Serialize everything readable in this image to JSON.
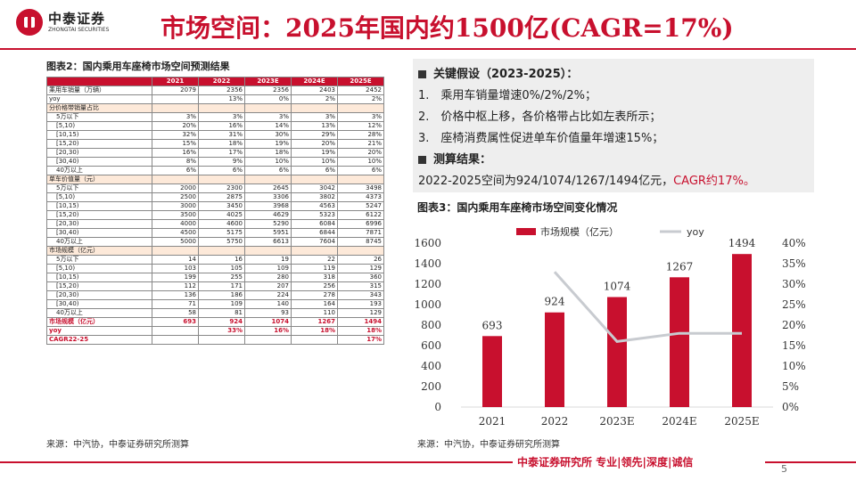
{
  "header": {
    "logo_cn": "中泰证券",
    "logo_en": "ZHONGTAI SECURITIES",
    "title": "市场空间：2025年国内约1500亿(CAGR=17%)"
  },
  "table": {
    "caption": "图表2：国内乘用车座椅市场空间预测结果",
    "columns": [
      "",
      "2021",
      "2022",
      "2023E",
      "2024E",
      "2025E"
    ],
    "rows": [
      {
        "cells": [
          "乘用车销量（万辆）",
          "2079",
          "2356",
          "2356",
          "2403",
          "2452"
        ],
        "kind": "normal"
      },
      {
        "cells": [
          "yoy",
          "",
          "13%",
          "0%",
          "2%",
          "2%"
        ],
        "kind": "normal"
      },
      {
        "cells": [
          "分价格带销量占比",
          "",
          "",
          "",
          "",
          ""
        ],
        "kind": "section"
      },
      {
        "cells": [
          "5万以下",
          "3%",
          "3%",
          "3%",
          "3%",
          "3%"
        ],
        "kind": "indent"
      },
      {
        "cells": [
          "[5,10)",
          "20%",
          "16%",
          "14%",
          "13%",
          "12%"
        ],
        "kind": "indent"
      },
      {
        "cells": [
          "[10,15)",
          "32%",
          "31%",
          "30%",
          "29%",
          "28%"
        ],
        "kind": "indent"
      },
      {
        "cells": [
          "[15,20)",
          "15%",
          "18%",
          "19%",
          "20%",
          "21%"
        ],
        "kind": "indent"
      },
      {
        "cells": [
          "[20,30)",
          "16%",
          "17%",
          "18%",
          "19%",
          "20%"
        ],
        "kind": "indent"
      },
      {
        "cells": [
          "[30,40)",
          "8%",
          "9%",
          "10%",
          "10%",
          "10%"
        ],
        "kind": "indent"
      },
      {
        "cells": [
          "40万以上",
          "6%",
          "6%",
          "6%",
          "6%",
          "6%"
        ],
        "kind": "indent"
      },
      {
        "cells": [
          "单车价值量（元）",
          "",
          "",
          "",
          "",
          ""
        ],
        "kind": "section"
      },
      {
        "cells": [
          "5万以下",
          "2000",
          "2300",
          "2645",
          "3042",
          "3498"
        ],
        "kind": "indent"
      },
      {
        "cells": [
          "[5,10)",
          "2500",
          "2875",
          "3306",
          "3802",
          "4373"
        ],
        "kind": "indent"
      },
      {
        "cells": [
          "[10,15)",
          "3000",
          "3450",
          "3968",
          "4563",
          "5247"
        ],
        "kind": "indent"
      },
      {
        "cells": [
          "[15,20)",
          "3500",
          "4025",
          "4629",
          "5323",
          "6122"
        ],
        "kind": "indent"
      },
      {
        "cells": [
          "[20,30)",
          "4000",
          "4600",
          "5290",
          "6084",
          "6996"
        ],
        "kind": "indent"
      },
      {
        "cells": [
          "[30,40)",
          "4500",
          "5175",
          "5951",
          "6844",
          "7871"
        ],
        "kind": "indent"
      },
      {
        "cells": [
          "40万以上",
          "5000",
          "5750",
          "6613",
          "7604",
          "8745"
        ],
        "kind": "indent"
      },
      {
        "cells": [
          "市场规模（亿元）",
          "",
          "",
          "",
          "",
          ""
        ],
        "kind": "section"
      },
      {
        "cells": [
          "5万以下",
          "14",
          "16",
          "19",
          "22",
          "26"
        ],
        "kind": "indent"
      },
      {
        "cells": [
          "[5,10)",
          "103",
          "105",
          "109",
          "119",
          "129"
        ],
        "kind": "indent"
      },
      {
        "cells": [
          "[10,15)",
          "199",
          "255",
          "280",
          "318",
          "360"
        ],
        "kind": "indent"
      },
      {
        "cells": [
          "[15,20)",
          "112",
          "171",
          "207",
          "256",
          "315"
        ],
        "kind": "indent"
      },
      {
        "cells": [
          "[20,30)",
          "136",
          "186",
          "224",
          "278",
          "343"
        ],
        "kind": "indent"
      },
      {
        "cells": [
          "[30,40)",
          "71",
          "109",
          "140",
          "164",
          "193"
        ],
        "kind": "indent"
      },
      {
        "cells": [
          "40万以上",
          "58",
          "81",
          "93",
          "110",
          "129"
        ],
        "kind": "indent"
      },
      {
        "cells": [
          "市场规模（亿元）",
          "693",
          "924",
          "1074",
          "1267",
          "1494"
        ],
        "kind": "red"
      },
      {
        "cells": [
          "yoy",
          "",
          "33%",
          "16%",
          "18%",
          "18%"
        ],
        "kind": "red"
      },
      {
        "cells": [
          "CAGR22-25",
          "",
          "",
          "",
          "",
          "17%"
        ],
        "kind": "red"
      }
    ],
    "source": "来源：中汽协，中泰证券研究所测算"
  },
  "assumptions": {
    "heading": "关键假设（2023-2025）：",
    "items": [
      "1.　乘用车销量增速0%/2%/2%；",
      "2.　价格中枢上移，各价格带占比如左表所示；",
      "3.　座椅消费属性促进单车价值量年增速15%；"
    ],
    "result_heading": "测算结果：",
    "result_text": "2022-2025空间为924/1074/1267/1494亿元，",
    "result_highlight": "CAGR约17%。"
  },
  "chart": {
    "caption": "图表3：国内乘用车座椅市场空间变化情况",
    "source": "来源：中汽协，中泰证券研究所测算"
  },
  "chart_data": {
    "type": "bar",
    "categories": [
      "2021",
      "2022",
      "2023E",
      "2024E",
      "2025E"
    ],
    "series": [
      {
        "name": "市场规模（亿元）",
        "type": "bar",
        "axis": "left",
        "values": [
          693,
          924,
          1074,
          1267,
          1494
        ],
        "color": "#c8102e"
      },
      {
        "name": "yoy",
        "type": "line",
        "axis": "right",
        "values": [
          null,
          33,
          16,
          18,
          18
        ],
        "color": "#c8cbd0"
      }
    ],
    "y_left": {
      "min": 0,
      "max": 1600,
      "ticks": [
        "0",
        "200",
        "400",
        "600",
        "800",
        "1000",
        "1200",
        "1400",
        "1600"
      ]
    },
    "y_right": {
      "min": 0,
      "max": 40,
      "ticks": [
        "0%",
        "5%",
        "10%",
        "15%",
        "20%",
        "25%",
        "30%",
        "35%",
        "40%"
      ]
    },
    "data_labels": [
      "693",
      "924",
      "1074",
      "1267",
      "1494"
    ],
    "legend_position": "top",
    "grid": false
  },
  "footer": {
    "text": "中泰证券研究所 专业|领先|深度|诚信",
    "page": "5"
  }
}
